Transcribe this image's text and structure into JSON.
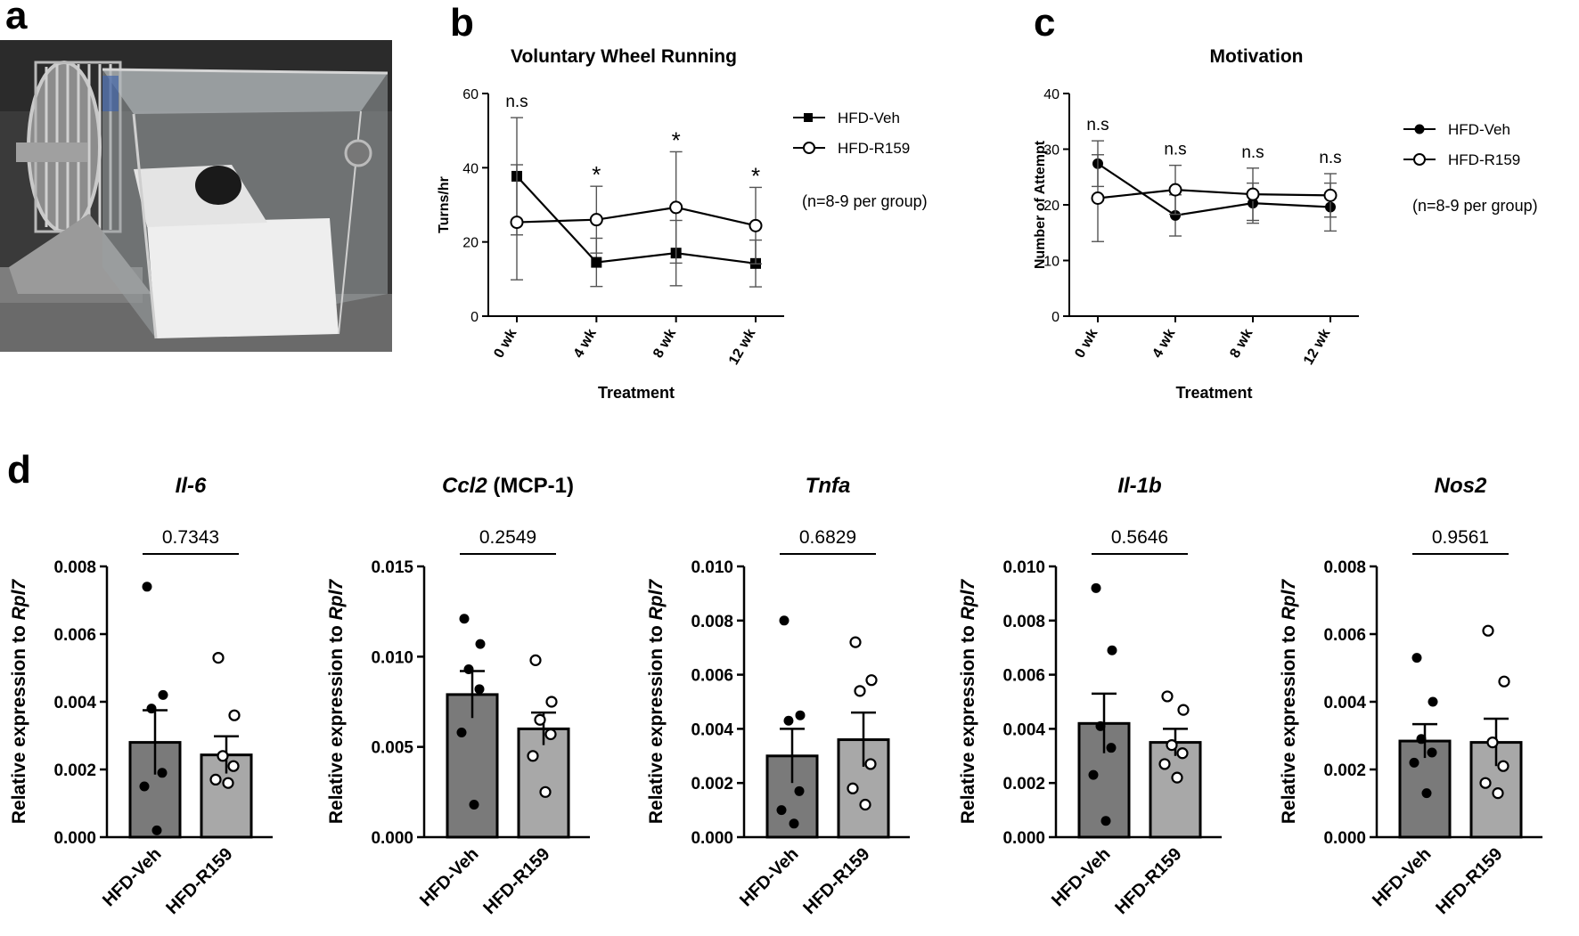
{
  "panels": {
    "a": {
      "letter": "a"
    },
    "b": {
      "letter": "b"
    },
    "c": {
      "letter": "c"
    },
    "d": {
      "letter": "d"
    }
  },
  "colors": {
    "veh_bar": "#7a7a7a",
    "r159_bar": "#a8a8a8",
    "ink": "#000000",
    "errorbar": "#666666"
  },
  "chart_data": [
    {
      "id": "b",
      "type": "line",
      "title": "Voluntary Wheel Running",
      "xlabel": "Treatment",
      "ylabel": "Turns/hr",
      "categories": [
        "0 wk",
        "4 wk",
        "8 wk",
        "12 wk"
      ],
      "ylim": [
        0,
        60
      ],
      "yticks": [
        "0",
        "20",
        "40",
        "60"
      ],
      "series": [
        {
          "name": "HFD-Veh",
          "marker": "filled-square",
          "values": [
            37.7,
            14.5,
            17.0,
            14.2
          ],
          "err": [
            15.8,
            6.5,
            8.8,
            6.3
          ]
        },
        {
          "name": "HFD-R159",
          "marker": "open-circle",
          "values": [
            25.3,
            26.0,
            29.3,
            24.4
          ],
          "err": [
            15.5,
            9.0,
            15.0,
            10.3
          ]
        }
      ],
      "annotations": [
        "n.s",
        "*",
        "*",
        "*"
      ],
      "note": "(n=8-9 per group)"
    },
    {
      "id": "c",
      "type": "line",
      "title": "Motivation",
      "xlabel": "Treatment",
      "ylabel": "Number of Attempt",
      "categories": [
        "0 wk",
        "4 wk",
        "8 wk",
        "12 wk"
      ],
      "ylim": [
        0,
        40
      ],
      "yticks": [
        "0",
        "10",
        "20",
        "30",
        "40"
      ],
      "series": [
        {
          "name": "HFD-Veh",
          "marker": "filled-circle",
          "values": [
            27.4,
            18.1,
            20.3,
            19.6
          ],
          "err": [
            4.1,
            3.7,
            3.6,
            4.3
          ]
        },
        {
          "name": "HFD-R159",
          "marker": "open-circle",
          "values": [
            21.2,
            22.7,
            21.9,
            21.7
          ],
          "err": [
            7.8,
            4.4,
            4.7,
            3.9
          ]
        }
      ],
      "annotations": [
        "n.s",
        "n.s",
        "n.s",
        "n.s"
      ],
      "note": "(n=8-9 per group)"
    },
    {
      "id": "d1",
      "type": "bar",
      "title_italic": "Il-6",
      "title_plain": "",
      "ylabel_plain": "Relative expression to ",
      "ylabel_italic": "Rpl7",
      "categories": [
        "HFD-Veh",
        "HFD-R159"
      ],
      "values": [
        0.0028,
        0.00243
      ],
      "sem": [
        0.00095,
        0.00055
      ],
      "ylim": [
        0,
        0.008
      ],
      "yticks": [
        "0.000",
        "0.002",
        "0.004",
        "0.006",
        "0.008"
      ],
      "points": [
        [
          0.0074,
          0.0042,
          0.0038,
          0.0019,
          0.0015,
          0.0002
        ],
        [
          0.0053,
          0.0036,
          0.0024,
          0.0021,
          0.0017,
          0.0016
        ]
      ],
      "p_value": "0.7343"
    },
    {
      "id": "d2",
      "type": "bar",
      "title_italic": "Ccl2",
      "title_plain": " (MCP-1)",
      "ylabel_plain": "Relative expression to ",
      "ylabel_italic": "Rpl7",
      "categories": [
        "HFD-Veh",
        "HFD-R159"
      ],
      "values": [
        0.0079,
        0.006
      ],
      "sem": [
        0.0013,
        0.0009
      ],
      "ylim": [
        0,
        0.015
      ],
      "yticks": [
        "0.000",
        "0.005",
        "0.010",
        "0.015"
      ],
      "points": [
        [
          0.0121,
          0.0107,
          0.0093,
          0.0082,
          0.0058,
          0.0018
        ],
        [
          0.0098,
          0.0075,
          0.0065,
          0.0057,
          0.0045,
          0.0025
        ]
      ],
      "p_value": "0.2549"
    },
    {
      "id": "d3",
      "type": "bar",
      "title_italic": "Tnfa",
      "title_plain": "",
      "ylabel_plain": "Relative expression to ",
      "ylabel_italic": "Rpl7",
      "categories": [
        "HFD-Veh",
        "HFD-R159"
      ],
      "values": [
        0.003,
        0.0036
      ],
      "sem": [
        0.001,
        0.001
      ],
      "ylim": [
        0,
        0.01
      ],
      "yticks": [
        "0.000",
        "0.002",
        "0.004",
        "0.006",
        "0.008",
        "0.010"
      ],
      "points": [
        [
          0.008,
          0.0045,
          0.0043,
          0.0017,
          0.001,
          0.0005
        ],
        [
          0.0072,
          0.0058,
          0.0054,
          0.0027,
          0.0018,
          0.0012
        ]
      ],
      "p_value": "0.6829"
    },
    {
      "id": "d4",
      "type": "bar",
      "title_italic": "Il-1b",
      "title_plain": "",
      "ylabel_plain": "Relative expression to ",
      "ylabel_italic": "Rpl7",
      "categories": [
        "HFD-Veh",
        "HFD-R159"
      ],
      "values": [
        0.0042,
        0.0035
      ],
      "sem": [
        0.0011,
        0.0005
      ],
      "ylim": [
        0,
        0.01
      ],
      "yticks": [
        "0.000",
        "0.002",
        "0.004",
        "0.006",
        "0.008",
        "0.010"
      ],
      "points": [
        [
          0.0092,
          0.0069,
          0.0041,
          0.0033,
          0.0023,
          0.0006
        ],
        [
          0.0052,
          0.0047,
          0.0034,
          0.0031,
          0.0027,
          0.0022
        ]
      ],
      "p_value": "0.5646"
    },
    {
      "id": "d5",
      "type": "bar",
      "title_italic": "Nos2",
      "title_plain": "",
      "ylabel_plain": "Relative expression to ",
      "ylabel_italic": "Rpl7",
      "categories": [
        "HFD-Veh",
        "HFD-R159"
      ],
      "values": [
        0.00284,
        0.0028
      ],
      "sem": [
        0.0005,
        0.0007
      ],
      "ylim": [
        0,
        0.008
      ],
      "yticks": [
        "0.000",
        "0.002",
        "0.004",
        "0.006",
        "0.008"
      ],
      "points": [
        [
          0.0053,
          0.004,
          0.0029,
          0.0025,
          0.0022,
          0.0013
        ],
        [
          0.0061,
          0.0046,
          0.0028,
          0.0021,
          0.0016,
          0.0013
        ]
      ],
      "p_value": "0.9561"
    }
  ]
}
